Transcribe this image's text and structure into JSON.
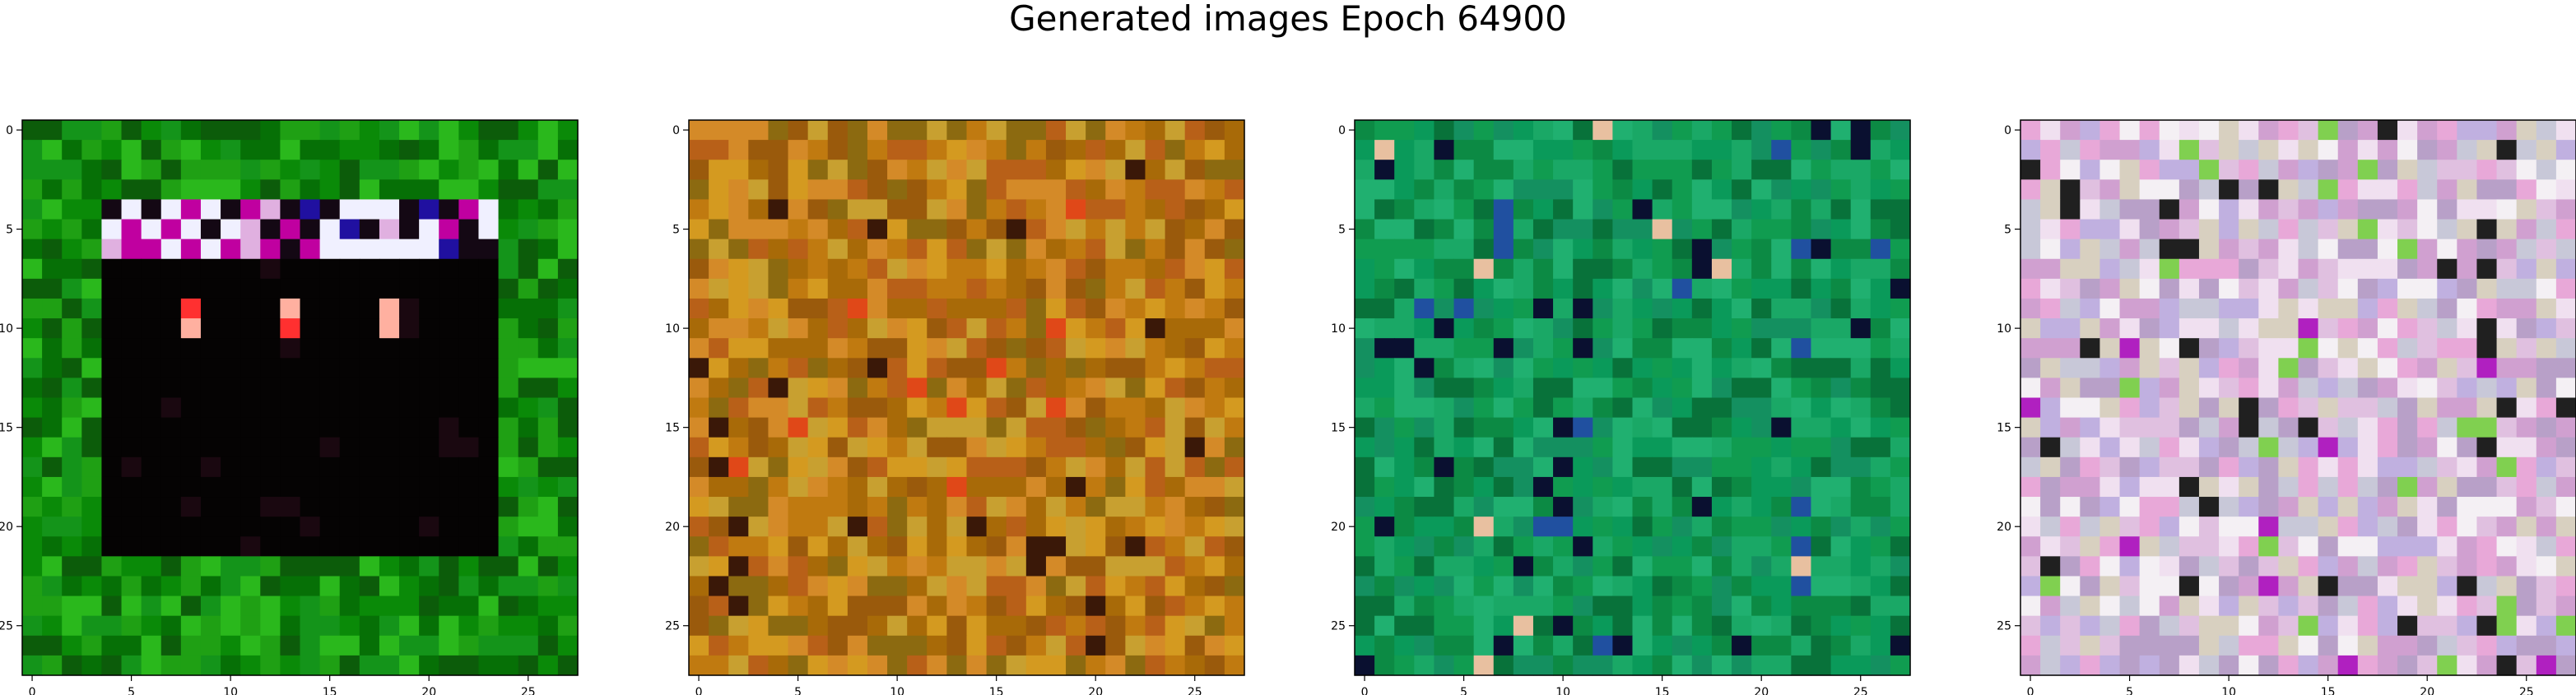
{
  "figure": {
    "title": "Generated images Epoch 64900"
  },
  "chart_data": [
    {
      "type": "heatmap",
      "xlim": [
        -0.5,
        27.5
      ],
      "ylim": [
        27.5,
        -0.5
      ],
      "xticks": [
        0,
        5,
        10,
        15,
        20,
        25
      ],
      "yticks": [
        0,
        5,
        10,
        15,
        20,
        25
      ],
      "xtick_labels": [
        "0",
        "5",
        "10",
        "15",
        "20",
        "25"
      ],
      "ytick_labels": [
        "0",
        "5",
        "10",
        "15",
        "20",
        "25"
      ],
      "grid": false,
      "palette": [
        "#0a8a08",
        "#1fa014",
        "#067006",
        "#2ab81c",
        "#0c5c0a",
        "#14941a"
      ]
    },
    {
      "type": "heatmap",
      "xlim": [
        -0.5,
        27.5
      ],
      "ylim": [
        27.5,
        -0.5
      ],
      "xticks": [
        0,
        5,
        10,
        15,
        20,
        25
      ],
      "yticks": [
        0,
        5,
        10,
        15,
        20,
        25
      ],
      "xtick_labels": [
        "0",
        "5",
        "10",
        "15",
        "20",
        "25"
      ],
      "ytick_labels": [
        "0",
        "5",
        "10",
        "15",
        "20",
        "25"
      ],
      "grid": false,
      "palette": [
        "#c07a10",
        "#a86a08",
        "#d49a20",
        "#b86018",
        "#8c6a10",
        "#c8a030",
        "#9a5a0c",
        "#d48a28"
      ]
    },
    {
      "type": "heatmap",
      "xlim": [
        -0.5,
        27.5
      ],
      "ylim": [
        27.5,
        -0.5
      ],
      "xticks": [
        0,
        5,
        10,
        15,
        20,
        25
      ],
      "yticks": [
        0,
        5,
        10,
        15,
        20,
        25
      ],
      "xtick_labels": [
        "0",
        "5",
        "10",
        "15",
        "20",
        "25"
      ],
      "ytick_labels": [
        "0",
        "5",
        "10",
        "15",
        "20",
        "25"
      ],
      "grid": false,
      "palette": [
        "#109c50",
        "#0c8a44",
        "#1aa866",
        "#08723a",
        "#20b070",
        "#149060",
        "#0a9a5a"
      ]
    },
    {
      "type": "heatmap",
      "xlim": [
        -0.5,
        27.5
      ],
      "ylim": [
        27.5,
        -0.5
      ],
      "xticks": [
        0,
        5,
        10,
        15,
        20,
        25
      ],
      "yticks": [
        0,
        5,
        10,
        15,
        20,
        25
      ],
      "xtick_labels": [
        "0",
        "5",
        "10",
        "15",
        "20",
        "25"
      ],
      "ytick_labels": [
        "0",
        "5",
        "10",
        "15",
        "20",
        "25"
      ],
      "grid": false,
      "palette": [
        "#e0c0e0",
        "#d0a0d0",
        "#f0e0f0",
        "#c8c8d8",
        "#e8a8d8",
        "#b8a0c8",
        "#d8d0c0",
        "#f4f0f4",
        "#c0b0e0"
      ]
    }
  ]
}
